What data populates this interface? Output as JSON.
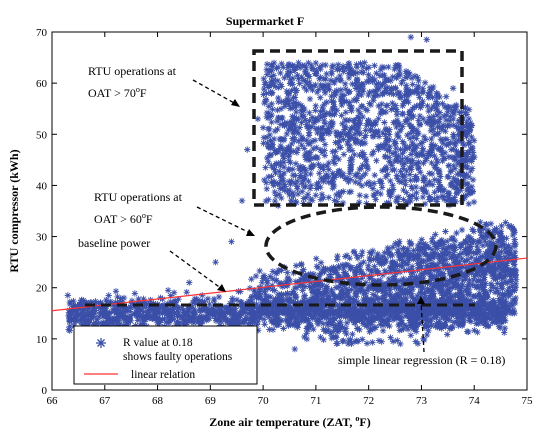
{
  "chart_data": {
    "type": "scatter",
    "title": "Supermarket F",
    "xlabel": "Zone air temperature (ZAT, °F)",
    "ylabel": "RTU compressor (kWh)",
    "xlim": [
      66,
      75
    ],
    "ylim": [
      0,
      70
    ],
    "x_ticks": [
      "66",
      "67",
      "68",
      "69",
      "70",
      "71",
      "72",
      "73",
      "74",
      "75"
    ],
    "y_ticks": [
      "0",
      "10",
      "20",
      "30",
      "40",
      "50",
      "60",
      "70"
    ],
    "grid": false,
    "legend_position": "bottom-left",
    "legend": [
      {
        "label_line1": "R value at 0.18",
        "label_line2": "shows faulty operations",
        "marker": "*",
        "color": "#3b4fa8"
      },
      {
        "label": "linear relation",
        "marker": "line",
        "color": "#ff3333"
      }
    ],
    "regression": {
      "name": "linear relation",
      "x": [
        66,
        75
      ],
      "y": [
        15.5,
        25.8
      ],
      "color": "#ff3333"
    },
    "clusters": [
      {
        "name": "baseline power",
        "x_range": [
          66.3,
          74.6
        ],
        "y_range": [
          10,
          19
        ]
      },
      {
        "name": "OAT > 60F",
        "x_range": [
          69.5,
          74.8
        ],
        "y_range": [
          14,
          32
        ]
      },
      {
        "name": "OAT > 70F",
        "x_range": [
          70,
          74
        ],
        "y_range": [
          36,
          64
        ]
      }
    ],
    "outliers": [
      [
        66.3,
        18.5
      ],
      [
        66.6,
        17.5
      ],
      [
        68.2,
        19.5
      ],
      [
        68.6,
        21.0
      ],
      [
        69.1,
        25.0
      ],
      [
        69.4,
        29.0
      ],
      [
        69.6,
        37.0
      ],
      [
        69.7,
        47.0
      ],
      [
        69.9,
        53.0
      ],
      [
        70.1,
        51.0
      ],
      [
        70.2,
        40.0
      ],
      [
        70.4,
        24.0
      ],
      [
        70.5,
        13.0
      ],
      [
        70.6,
        8.0
      ],
      [
        71.3,
        56.5
      ],
      [
        71.8,
        9.5
      ],
      [
        72.6,
        9.0
      ],
      [
        72.8,
        69.0
      ],
      [
        73.1,
        68.5
      ],
      [
        73.4,
        56.0
      ],
      [
        73.6,
        59.0
      ],
      [
        73.9,
        53.0
      ]
    ],
    "annotations": {
      "a1_line1": "RTU operations at",
      "a1_line2": "OAT > 70",
      "a1_sup": "o",
      "a1_unit": "F",
      "a2_line1": "RTU operations at",
      "a2_line2": "OAT > 60",
      "a2_sup": "o",
      "a2_unit": "F",
      "a3": "baseline power",
      "a4": "simple linear regression (R = 0.18)"
    },
    "colors": {
      "points": "#3b4fa8",
      "regression": "#ff3333",
      "boxes": "#1a1a1a"
    }
  },
  "labels": {
    "xlabel_pre": "Zone air temperature (ZAT, ",
    "xlabel_sup": "o",
    "xlabel_post": "F)"
  }
}
